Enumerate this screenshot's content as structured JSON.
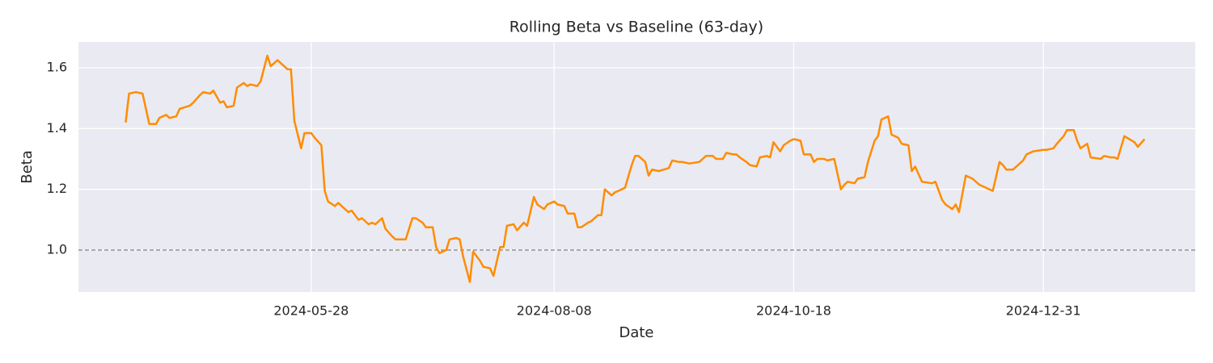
{
  "chart_data": {
    "type": "line",
    "title": "Rolling Beta vs Baseline (63-day)",
    "x_label": "Date",
    "y_label": "Beta",
    "color": "#ff8c00",
    "x": [
      "2024-04-03",
      "2024-04-04",
      "2024-04-06",
      "2024-04-08",
      "2024-04-10",
      "2024-04-12",
      "2024-04-13",
      "2024-04-15",
      "2024-04-16",
      "2024-04-18",
      "2024-04-19",
      "2024-04-22",
      "2024-04-23",
      "2024-04-25",
      "2024-04-26",
      "2024-04-28",
      "2024-04-29",
      "2024-05-01",
      "2024-05-02",
      "2024-05-03",
      "2024-05-05",
      "2024-05-06",
      "2024-05-08",
      "2024-05-09",
      "2024-05-10",
      "2024-05-12",
      "2024-05-13",
      "2024-05-15",
      "2024-05-16",
      "2024-05-18",
      "2024-05-19",
      "2024-05-21",
      "2024-05-22",
      "2024-05-23",
      "2024-05-25",
      "2024-05-26",
      "2024-05-28",
      "2024-05-29",
      "2024-05-31",
      "2024-06-01",
      "2024-06-02",
      "2024-06-04",
      "2024-06-05",
      "2024-06-07",
      "2024-06-08",
      "2024-06-09",
      "2024-06-11",
      "2024-06-12",
      "2024-06-14",
      "2024-06-15",
      "2024-06-16",
      "2024-06-18",
      "2024-06-19",
      "2024-06-21",
      "2024-06-22",
      "2024-06-25",
      "2024-06-27",
      "2024-06-28",
      "2024-06-30",
      "2024-07-01",
      "2024-07-03",
      "2024-07-04",
      "2024-07-05",
      "2024-07-07",
      "2024-07-08",
      "2024-07-10",
      "2024-07-11",
      "2024-07-12",
      "2024-07-14",
      "2024-07-15",
      "2024-07-17",
      "2024-07-18",
      "2024-07-20",
      "2024-07-21",
      "2024-07-23",
      "2024-07-24",
      "2024-07-25",
      "2024-07-27",
      "2024-07-28",
      "2024-07-30",
      "2024-07-31",
      "2024-08-02",
      "2024-08-03",
      "2024-08-05",
      "2024-08-06",
      "2024-08-08",
      "2024-08-09",
      "2024-08-11",
      "2024-08-12",
      "2024-08-14",
      "2024-08-15",
      "2024-08-16",
      "2024-08-18",
      "2024-08-19",
      "2024-08-21",
      "2024-08-22",
      "2024-08-23",
      "2024-08-25",
      "2024-08-26",
      "2024-08-28",
      "2024-08-29",
      "2024-08-31",
      "2024-09-01",
      "2024-09-02",
      "2024-09-04",
      "2024-09-05",
      "2024-09-06",
      "2024-09-08",
      "2024-09-11",
      "2024-09-12",
      "2024-09-14",
      "2024-09-15",
      "2024-09-17",
      "2024-09-20",
      "2024-09-21",
      "2024-09-22",
      "2024-09-24",
      "2024-09-25",
      "2024-09-27",
      "2024-09-28",
      "2024-09-30",
      "2024-10-01",
      "2024-10-02",
      "2024-10-04",
      "2024-10-05",
      "2024-10-07",
      "2024-10-08",
      "2024-10-10",
      "2024-10-11",
      "2024-10-12",
      "2024-10-14",
      "2024-10-15",
      "2024-10-17",
      "2024-10-18",
      "2024-10-20",
      "2024-10-21",
      "2024-10-23",
      "2024-10-24",
      "2024-10-25",
      "2024-10-27",
      "2024-10-28",
      "2024-10-30",
      "2024-11-01",
      "2024-11-02",
      "2024-11-03",
      "2024-11-05",
      "2024-11-06",
      "2024-11-08",
      "2024-11-09",
      "2024-11-11",
      "2024-11-12",
      "2024-11-13",
      "2024-11-15",
      "2024-11-16",
      "2024-11-18",
      "2024-11-19",
      "2024-11-21",
      "2024-11-22",
      "2024-11-23",
      "2024-11-25",
      "2024-11-28",
      "2024-11-29",
      "2024-12-01",
      "2024-12-02",
      "2024-12-04",
      "2024-12-05",
      "2024-12-06",
      "2024-12-08",
      "2024-12-09",
      "2024-12-10",
      "2024-12-12",
      "2024-12-13",
      "2024-12-15",
      "2024-12-16",
      "2024-12-18",
      "2024-12-19",
      "2024-12-20",
      "2024-12-22",
      "2024-12-23",
      "2024-12-25",
      "2024-12-26",
      "2024-12-28",
      "2024-12-31",
      "2025-01-01",
      "2025-01-03",
      "2025-01-04",
      "2025-01-06",
      "2025-01-07",
      "2025-01-09",
      "2025-01-10",
      "2025-01-11",
      "2025-01-13",
      "2025-01-14",
      "2025-01-17",
      "2025-01-18",
      "2025-01-20",
      "2025-01-21",
      "2025-01-22",
      "2025-01-24",
      "2025-01-27",
      "2025-01-28",
      "2025-01-30"
    ],
    "values": [
      1.42,
      1.515,
      1.52,
      1.515,
      1.415,
      1.415,
      1.435,
      1.445,
      1.435,
      1.44,
      1.465,
      1.475,
      1.485,
      1.51,
      1.52,
      1.515,
      1.525,
      1.485,
      1.49,
      1.47,
      1.475,
      1.535,
      1.55,
      1.54,
      1.545,
      1.54,
      1.555,
      1.64,
      1.605,
      1.625,
      1.615,
      1.595,
      1.595,
      1.425,
      1.335,
      1.385,
      1.385,
      1.37,
      1.345,
      1.195,
      1.16,
      1.145,
      1.155,
      1.135,
      1.125,
      1.13,
      1.1,
      1.105,
      1.085,
      1.09,
      1.085,
      1.105,
      1.07,
      1.045,
      1.035,
      1.035,
      1.105,
      1.105,
      1.09,
      1.075,
      1.075,
      1.01,
      0.99,
      1.0,
      1.035,
      1.04,
      1.035,
      0.98,
      0.895,
      0.995,
      0.965,
      0.945,
      0.94,
      0.915,
      1.01,
      1.01,
      1.08,
      1.085,
      1.065,
      1.09,
      1.08,
      1.175,
      1.15,
      1.135,
      1.15,
      1.16,
      1.15,
      1.145,
      1.12,
      1.12,
      1.075,
      1.075,
      1.09,
      1.095,
      1.115,
      1.115,
      1.2,
      1.18,
      1.19,
      1.2,
      1.205,
      1.28,
      1.31,
      1.31,
      1.29,
      1.245,
      1.265,
      1.26,
      1.27,
      1.295,
      1.29,
      1.29,
      1.285,
      1.29,
      1.3,
      1.31,
      1.31,
      1.3,
      1.3,
      1.32,
      1.315,
      1.315,
      1.305,
      1.29,
      1.28,
      1.275,
      1.305,
      1.31,
      1.305,
      1.355,
      1.325,
      1.345,
      1.36,
      1.365,
      1.36,
      1.315,
      1.315,
      1.29,
      1.3,
      1.3,
      1.295,
      1.3,
      1.2,
      1.215,
      1.225,
      1.22,
      1.235,
      1.24,
      1.29,
      1.36,
      1.375,
      1.43,
      1.44,
      1.38,
      1.37,
      1.35,
      1.345,
      1.26,
      1.275,
      1.225,
      1.22,
      1.225,
      1.165,
      1.15,
      1.135,
      1.15,
      1.125,
      1.245,
      1.24,
      1.235,
      1.215,
      1.21,
      1.2,
      1.195,
      1.29,
      1.28,
      1.265,
      1.265,
      1.275,
      1.295,
      1.315,
      1.325,
      1.33,
      1.33,
      1.335,
      1.35,
      1.375,
      1.395,
      1.395,
      1.36,
      1.335,
      1.35,
      1.305,
      1.3,
      1.31,
      1.305,
      1.305,
      1.3,
      1.375,
      1.355,
      1.34,
      1.365
    ],
    "xlim": [
      "2024-03-20",
      "2025-02-14"
    ],
    "xticks": [
      "2024-05-28",
      "2024-08-08",
      "2024-10-18",
      "2024-12-31"
    ],
    "ylim": [
      0.862,
      1.685
    ],
    "yticks": [
      {
        "value": 1.0,
        "label": "1.0"
      },
      {
        "value": 1.2,
        "label": "1.2"
      },
      {
        "value": 1.4,
        "label": "1.4"
      },
      {
        "value": 1.6,
        "label": "1.6"
      }
    ],
    "grid": true,
    "reference_line": {
      "y": 1.0,
      "color": "#808080"
    }
  }
}
